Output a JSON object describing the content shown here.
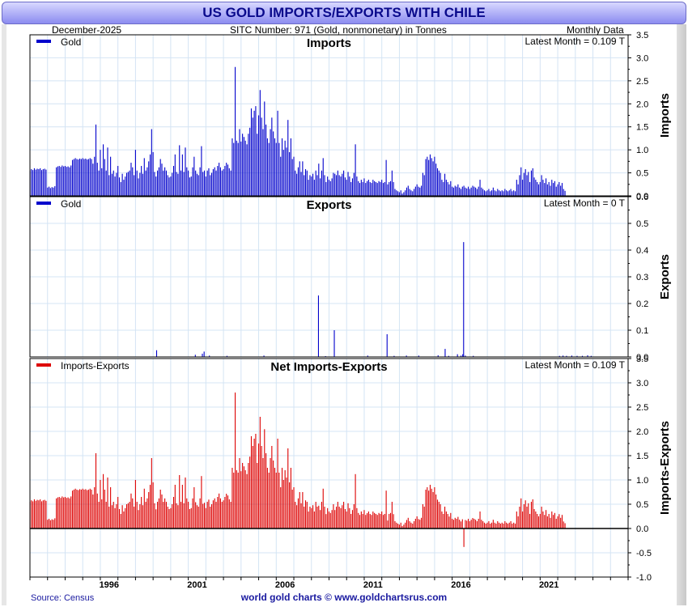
{
  "title": "US GOLD IMPORTS/EXPORTS WITH CHILE",
  "header": {
    "date": "December-2025",
    "sitc": "SITC Number: 971 (Gold, nonmonetary) in Tonnes",
    "frequency": "Monthly Data"
  },
  "footer": {
    "source": "Source: Census",
    "site": "world gold charts © www.goldchartsrus.com"
  },
  "colors": {
    "imports": "#0000cc",
    "exports": "#0000cc",
    "net": "#dd0000",
    "grid": "#d4e4f4"
  },
  "chart_data": [
    {
      "type": "bar",
      "id": "imports",
      "title": "Imports",
      "legend": "Gold",
      "latest_label": "Latest Month = 0.109 T",
      "ylabel": "Imports",
      "ylim": [
        0,
        3.5
      ],
      "yticks": [
        "0.0",
        "0.5",
        "1.0",
        "1.5",
        "2.0",
        "2.5",
        "3.0",
        "3.5"
      ],
      "x_start": 1992.0,
      "step": 0.08333,
      "values": [
        0.55,
        0.58,
        0.56,
        0.6,
        0.57,
        0.59,
        0.58,
        0.6,
        0.56,
        0.58,
        0.59,
        0.57,
        0.18,
        0.2,
        0.17,
        0.19,
        0.18,
        0.21,
        0.62,
        0.64,
        0.65,
        0.63,
        0.66,
        0.64,
        0.65,
        0.63,
        0.64,
        0.62,
        0.66,
        0.78,
        0.8,
        0.82,
        0.8,
        0.79,
        0.81,
        0.8,
        0.82,
        0.8,
        0.81,
        0.79,
        0.8,
        0.82,
        0.8,
        0.7,
        0.85,
        1.55,
        0.72,
        0.55,
        1.0,
        0.6,
        1.12,
        0.8,
        0.55,
        1.05,
        0.45,
        0.85,
        0.48,
        0.55,
        0.42,
        0.5,
        0.65,
        0.4,
        0.3,
        0.48,
        0.35,
        0.42,
        0.5,
        0.52,
        0.55,
        0.72,
        0.62,
        0.45,
        1.0,
        0.55,
        0.38,
        0.5,
        0.65,
        0.48,
        0.82,
        0.55,
        0.62,
        0.75,
        0.9,
        1.45,
        0.95,
        0.52,
        0.42,
        0.55,
        0.62,
        0.8,
        0.7,
        0.55,
        0.62,
        0.55,
        0.45,
        0.4,
        0.42,
        0.5,
        0.65,
        0.9,
        0.52,
        0.48,
        1.1,
        0.55,
        0.9,
        0.52,
        1.05,
        0.62,
        0.55,
        0.4,
        0.42,
        0.62,
        0.85,
        0.55,
        0.48,
        0.45,
        0.62,
        1.08,
        0.52,
        0.55,
        0.42,
        0.55,
        0.6,
        0.45,
        0.5,
        0.58,
        0.62,
        0.55,
        0.65,
        0.72,
        0.62,
        0.55,
        0.58,
        0.65,
        0.72,
        0.68,
        0.6,
        0.55,
        1.25,
        1.15,
        2.8,
        1.2,
        1.15,
        1.45,
        1.18,
        1.35,
        1.28,
        1.2,
        1.12,
        1.35,
        1.48,
        1.9,
        1.7,
        1.85,
        1.95,
        1.35,
        1.75,
        2.3,
        1.7,
        1.45,
        2.05,
        1.55,
        1.25,
        1.15,
        1.45,
        1.7,
        1.4,
        1.25,
        1.15,
        1.85,
        1.15,
        0.85,
        1.25,
        1.0,
        1.2,
        1.05,
        1.65,
        0.95,
        1.25,
        0.8,
        0.85,
        0.55,
        0.48,
        0.62,
        0.75,
        0.52,
        0.75,
        0.45,
        0.58,
        0.55,
        0.35,
        0.45,
        0.42,
        0.48,
        0.35,
        0.55,
        0.45,
        0.7,
        0.38,
        0.55,
        0.82,
        0.45,
        0.3,
        0.42,
        0.35,
        0.32,
        0.38,
        0.5,
        0.48,
        0.45,
        0.55,
        0.45,
        0.42,
        0.48,
        0.55,
        0.4,
        0.35,
        0.52,
        0.42,
        0.3,
        0.38,
        0.5,
        1.12,
        0.42,
        0.32,
        0.28,
        0.35,
        0.3,
        0.38,
        0.28,
        0.32,
        0.35,
        0.3,
        0.28,
        0.35,
        0.32,
        0.3,
        0.28,
        0.32,
        0.3,
        0.35,
        0.28,
        0.3,
        0.78,
        0.25,
        0.3,
        0.32,
        0.55,
        0.3,
        0.15,
        0.12,
        0.1,
        0.08,
        0.12,
        0.05,
        0.08,
        0.12,
        0.18,
        0.22,
        0.15,
        0.12,
        0.1,
        0.15,
        0.2,
        0.25,
        0.2,
        0.18,
        0.22,
        0.5,
        0.45,
        0.8,
        0.85,
        0.78,
        0.9,
        0.82,
        0.75,
        0.85,
        0.7,
        0.6,
        0.55,
        0.5,
        0.35,
        0.3,
        0.48,
        0.35,
        0.3,
        0.25,
        0.32,
        0.2,
        0.18,
        0.22,
        0.2,
        0.25,
        0.18,
        0.15,
        0.2,
        0.22,
        0.18,
        0.16,
        0.2,
        0.15,
        0.18,
        0.22,
        0.2,
        0.18,
        0.15,
        0.2,
        0.35,
        0.18,
        0.15,
        0.12,
        0.1,
        0.12,
        0.15,
        0.1,
        0.12,
        0.18,
        0.12,
        0.1,
        0.15,
        0.12,
        0.1,
        0.12,
        0.1,
        0.15,
        0.12,
        0.1,
        0.12,
        0.15,
        0.1,
        0.12,
        0.1,
        0.35,
        0.25,
        0.45,
        0.62,
        0.35,
        0.5,
        0.58,
        0.45,
        0.52,
        0.3,
        0.55,
        0.6,
        0.4,
        0.35,
        0.3,
        0.25,
        0.3,
        0.45,
        0.35,
        0.28,
        0.38,
        0.25,
        0.3,
        0.22,
        0.35,
        0.28,
        0.32,
        0.2,
        0.25,
        0.3,
        0.22,
        0.28,
        0.15,
        0.109
      ]
    },
    {
      "type": "bar",
      "id": "exports",
      "title": "Exports",
      "legend": "Gold",
      "latest_label": "Latest Month = 0 T",
      "ylabel": "Exports",
      "ylim": [
        0,
        0.6
      ],
      "yticks": [
        "0.0",
        "0.1",
        "0.2",
        "0.3",
        "0.4",
        "0.5",
        "0.6"
      ],
      "x_start": 1992.0,
      "step": 0.08333,
      "points": [
        {
          "x": 1999.2,
          "y": 0.025
        },
        {
          "x": 2001.4,
          "y": 0.008
        },
        {
          "x": 2001.8,
          "y": 0.012
        },
        {
          "x": 2001.9,
          "y": 0.02
        },
        {
          "x": 2002.2,
          "y": 0.005
        },
        {
          "x": 2003.2,
          "y": 0.004
        },
        {
          "x": 2005.3,
          "y": 0.005
        },
        {
          "x": 2008.4,
          "y": 0.23
        },
        {
          "x": 2008.8,
          "y": 0.003
        },
        {
          "x": 2009.3,
          "y": 0.1
        },
        {
          "x": 2011.2,
          "y": 0.005
        },
        {
          "x": 2012.3,
          "y": 0.085
        },
        {
          "x": 2012.7,
          "y": 0.004
        },
        {
          "x": 2013.4,
          "y": 0.005
        },
        {
          "x": 2014.1,
          "y": 0.005
        },
        {
          "x": 2015.2,
          "y": 0.006
        },
        {
          "x": 2015.6,
          "y": 0.03
        },
        {
          "x": 2015.8,
          "y": 0.004
        },
        {
          "x": 2016.3,
          "y": 0.01
        },
        {
          "x": 2016.5,
          "y": 0.005
        },
        {
          "x": 2016.6,
          "y": 0.01
        },
        {
          "x": 2016.65,
          "y": 0.43
        },
        {
          "x": 2016.75,
          "y": 0.005
        },
        {
          "x": 2017.2,
          "y": 0.004
        },
        {
          "x": 2022.1,
          "y": 0.004
        },
        {
          "x": 2022.3,
          "y": 0.005
        },
        {
          "x": 2022.5,
          "y": 0.004
        },
        {
          "x": 2022.8,
          "y": 0.005
        },
        {
          "x": 2023.1,
          "y": 0.004
        },
        {
          "x": 2023.4,
          "y": 0.004
        },
        {
          "x": 2023.7,
          "y": 0.006
        },
        {
          "x": 2023.9,
          "y": 0.004
        }
      ]
    },
    {
      "type": "bar",
      "id": "net",
      "title": "Net Imports-Exports",
      "legend": "Imports-Exports",
      "latest_label": "Latest Month = 0.109 T",
      "ylabel": "Imports-Exports",
      "ylim": [
        -1.0,
        3.5
      ],
      "yticks": [
        "-1.0",
        "-0.5",
        "0.0",
        "0.5",
        "1.0",
        "1.5",
        "2.0",
        "2.5",
        "3.0",
        "3.5"
      ],
      "derived_from": "imports minus exports"
    }
  ],
  "xaxis": {
    "range": [
      1992.0,
      2026.0
    ],
    "tick_labels": [
      "1996",
      "2001",
      "2006",
      "2011",
      "2016",
      "2021"
    ],
    "tick_years": [
      1996,
      2001,
      2006,
      2011,
      2016,
      2021
    ]
  }
}
